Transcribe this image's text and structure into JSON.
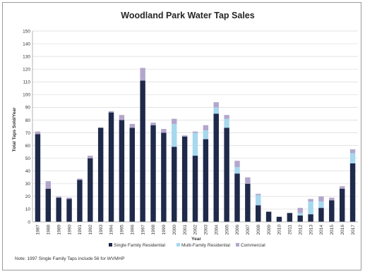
{
  "chart_data": {
    "type": "bar",
    "stacked": true,
    "title": "Woodland Park Water Tap Sales",
    "xlabel": "Year",
    "ylabel": "Total Taps Sold/Year",
    "ylim": [
      0,
      150
    ],
    "ytick_step": 10,
    "grid": true,
    "legend_position": "bottom",
    "note": "Note:  1997 Single Family Taps include 56 for WVMHP",
    "categories": [
      "1987",
      "1988",
      "1989",
      "1990",
      "1991",
      "1992",
      "1993",
      "1994",
      "1995",
      "1996",
      "1997",
      "1998",
      "1999",
      "2000",
      "2001",
      "2002",
      "2003",
      "2004",
      "2005",
      "2006",
      "2007",
      "2008",
      "2009",
      "2010",
      "2011",
      "2012",
      "2013",
      "2014",
      "2015",
      "2016",
      "2017"
    ],
    "series": [
      {
        "name": "Single Family Residential",
        "color": "#1f2a4a",
        "values": [
          69,
          26,
          19,
          18,
          33,
          50,
          74,
          86,
          80,
          74,
          111,
          76,
          70,
          59,
          67,
          52,
          65,
          85,
          74,
          38,
          30,
          13,
          8,
          4,
          7,
          5,
          6,
          11,
          17,
          26,
          46
        ]
      },
      {
        "name": "Multi-Family Residential",
        "color": "#a6d8ee",
        "values": [
          0,
          0,
          0,
          0,
          0,
          0,
          0,
          0,
          0,
          0,
          0,
          0,
          0,
          18,
          0,
          18,
          7,
          5,
          7,
          5,
          0,
          8,
          0,
          0,
          0,
          2,
          10,
          5,
          0,
          0,
          8
        ]
      },
      {
        "name": "Commercial",
        "color": "#b3a6cc",
        "values": [
          2,
          6,
          1,
          1,
          1,
          2,
          0,
          1,
          4,
          3,
          10,
          2,
          3,
          4,
          1,
          1,
          4,
          4,
          3,
          5,
          5,
          1,
          0,
          0,
          0,
          4,
          2,
          4,
          2,
          2,
          3
        ]
      }
    ]
  }
}
